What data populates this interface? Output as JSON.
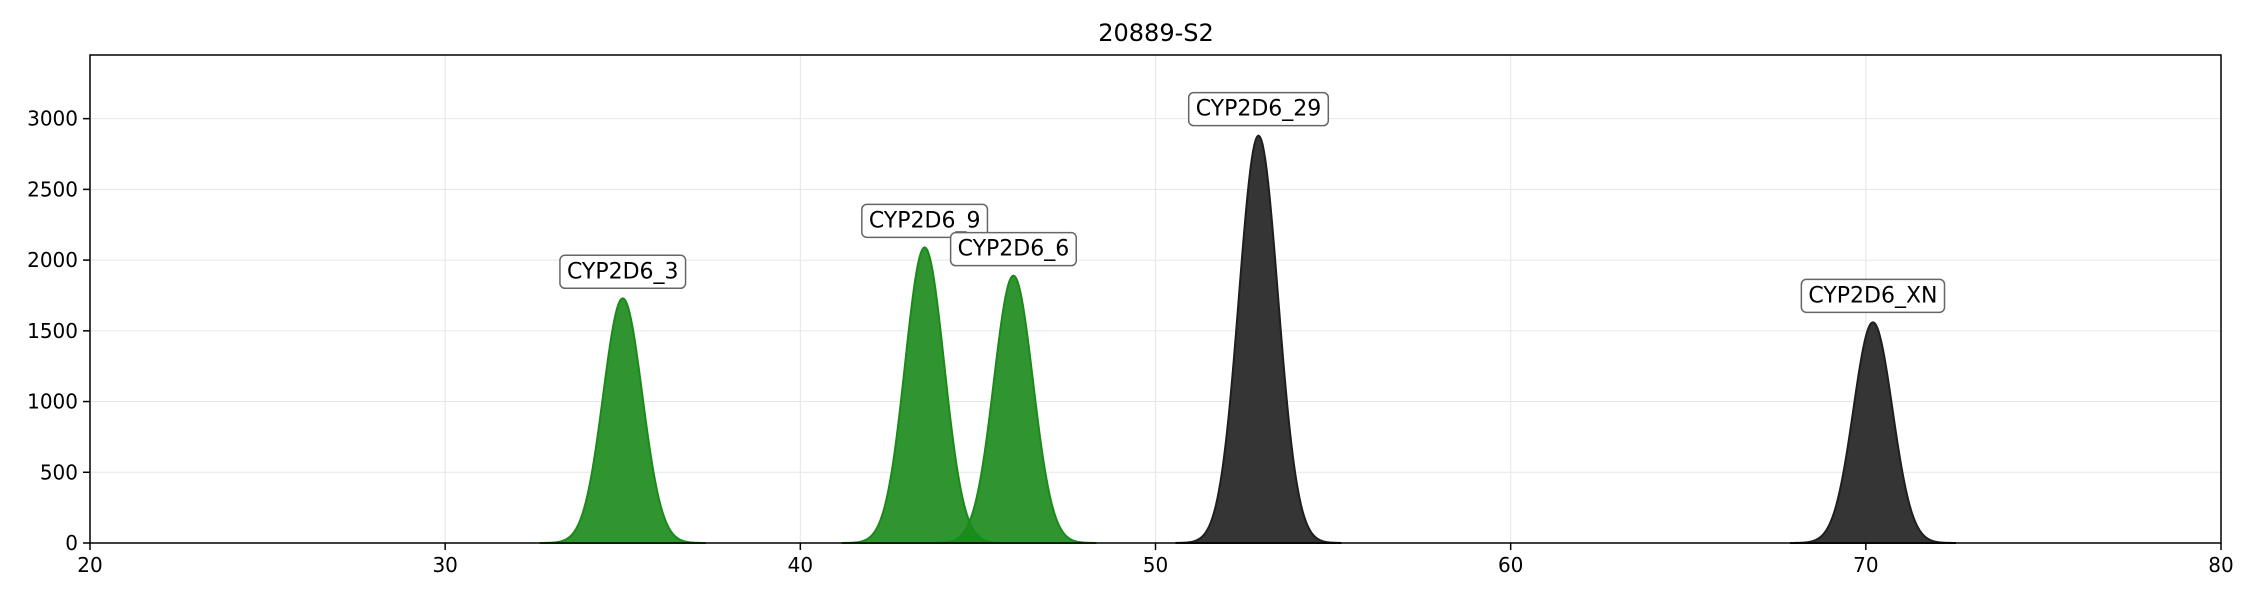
{
  "chart_data": {
    "type": "area",
    "title": "20889-S2",
    "xlabel": "",
    "ylabel": "",
    "xlim": [
      20,
      80
    ],
    "ylim": [
      0,
      3450
    ],
    "xticks": [
      20,
      30,
      40,
      50,
      60,
      70,
      80
    ],
    "yticks": [
      0,
      500,
      1000,
      1500,
      2000,
      2500,
      3000
    ],
    "grid": true,
    "legend": "none",
    "colors": {
      "green": "#1a8a1a",
      "black": "#1f1f1f"
    },
    "peaks": [
      {
        "label": "CYP2D6_3",
        "center": 35.0,
        "height": 1730,
        "sigma": 0.55,
        "color": "green"
      },
      {
        "label": "CYP2D6_9",
        "center": 43.5,
        "height": 2090,
        "sigma": 0.55,
        "color": "green"
      },
      {
        "label": "CYP2D6_6",
        "center": 46.0,
        "height": 1890,
        "sigma": 0.55,
        "color": "green"
      },
      {
        "label": "CYP2D6_29",
        "center": 52.9,
        "height": 2880,
        "sigma": 0.55,
        "color": "black"
      },
      {
        "label": "CYP2D6_XN",
        "center": 70.2,
        "height": 1560,
        "sigma": 0.55,
        "color": "black"
      }
    ]
  }
}
